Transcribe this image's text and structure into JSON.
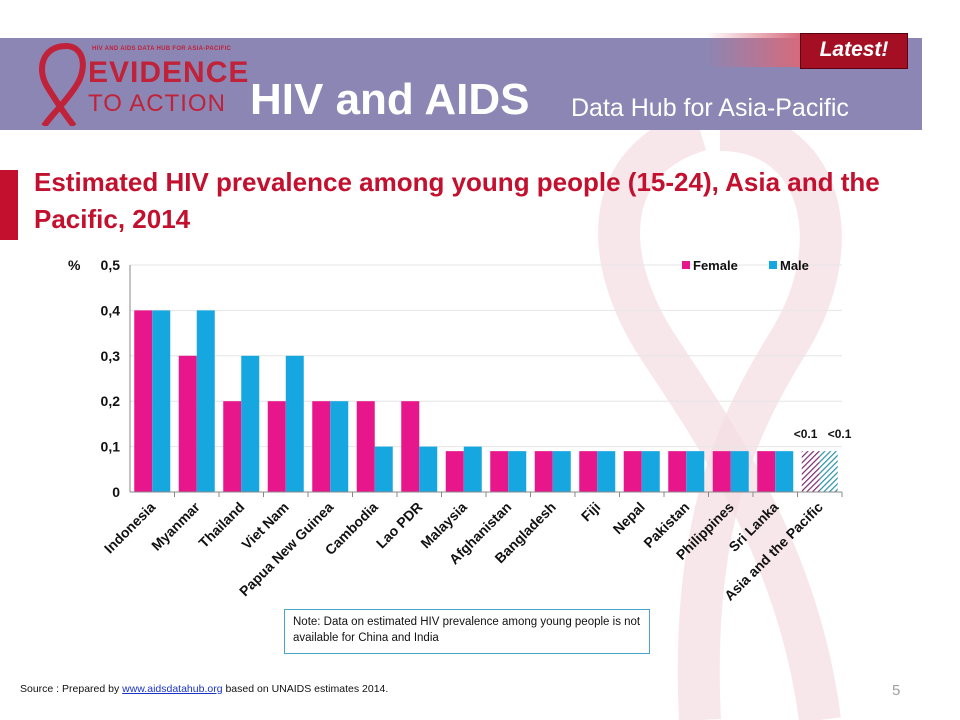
{
  "header": {
    "logo_small": "HIV AND AIDS DATA HUB FOR ASIA-PACIFIC",
    "logo_line1": "EVIDENCE",
    "logo_line2": "TO ACTION",
    "title": "HIV and AIDS",
    "subtitle": "Data Hub for Asia-Pacific",
    "latest_badge": "Latest!"
  },
  "slide": {
    "title": "Estimated HIV prevalence among young people (15-24), Asia and the Pacific, 2014",
    "note": "Note: Data on estimated HIV prevalence among young people is not available for China and India",
    "source_prefix": "Source : Prepared by ",
    "source_link": "www.aidsdatahub.org",
    "source_suffix": " based on UNAIDS estimates 2014.",
    "page_number": "5"
  },
  "chart_data": {
    "type": "bar",
    "ylabel": "%",
    "ylim": [
      0,
      0.5
    ],
    "y_ticks": [
      "0",
      "0,1",
      "0,2",
      "0,3",
      "0,4",
      "0,5"
    ],
    "y_tick_values": [
      0,
      0.1,
      0.2,
      0.3,
      0.4,
      0.5
    ],
    "legend_position": "top-right",
    "categories": [
      "Indonesia",
      "Myanmar",
      "Thailand",
      "Viet Nam",
      "Papua New Guinea",
      "Cambodia",
      "Lao PDR",
      "Malaysia",
      "Afghanistan",
      "Bangladesh",
      "Fiji",
      "Nepal",
      "Pakistan",
      "Philippines",
      "Sri Lanka",
      "Asia and the Pacific"
    ],
    "series": [
      {
        "name": "Female",
        "color": "#e8168b",
        "values": [
          0.4,
          0.3,
          0.2,
          0.2,
          0.2,
          0.2,
          0.2,
          0.09,
          0.09,
          0.09,
          0.09,
          0.09,
          0.09,
          0.09,
          0.09,
          0.09
        ]
      },
      {
        "name": "Male",
        "color": "#17a7e0",
        "values": [
          0.4,
          0.4,
          0.3,
          0.3,
          0.2,
          0.1,
          0.1,
          0.1,
          0.09,
          0.09,
          0.09,
          0.09,
          0.09,
          0.09,
          0.09,
          0.09
        ]
      }
    ],
    "hatched_category": "Asia and the Pacific",
    "annotations": [
      "<0.1",
      "<0.1"
    ]
  }
}
